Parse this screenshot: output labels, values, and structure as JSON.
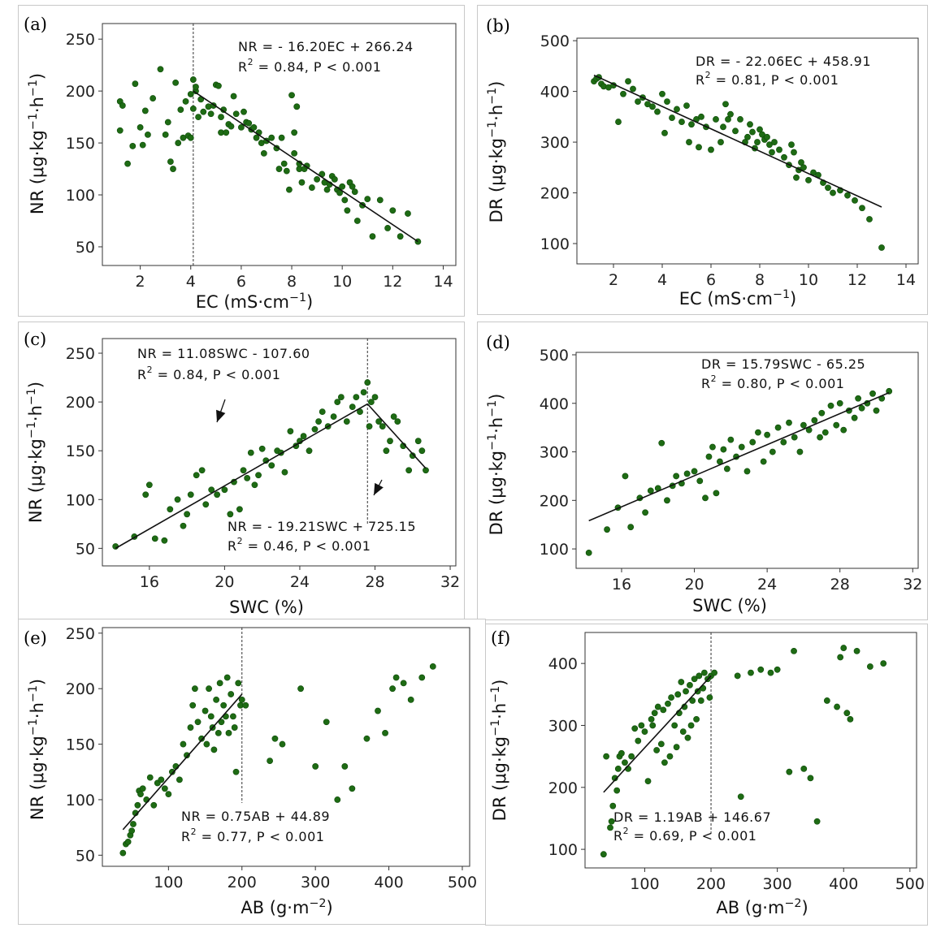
{
  "chart_data": [
    {
      "id": "a",
      "type": "scatter",
      "panel_label": "(a)",
      "xlabel": "EC (mS·cm",
      "xlabel_sup": "−1",
      "xlabel_end": ")",
      "ylabel": "NR (μg·kg",
      "ylabel_sup1": "−1",
      "ylabel_mid": "·h",
      "ylabel_sup2": "−1",
      "ylabel_end": ")",
      "xlim": [
        0.5,
        14.5
      ],
      "ylim": [
        32,
        265
      ],
      "xticks": [
        2,
        4,
        6,
        8,
        10,
        12,
        14
      ],
      "yticks": [
        50,
        100,
        150,
        200,
        250
      ],
      "equation": "NR = - 16.20EC + 266.24",
      "r2_label": "R",
      "r2_value": " = 0.84,   P < 0.001",
      "threshold_x": 4.1,
      "fit_lines": [
        {
          "x": [
            4.1,
            13.0
          ],
          "y": [
            200,
            55
          ]
        }
      ],
      "points": {
        "x": [
          1.2,
          1.3,
          1.2,
          1.5,
          1.7,
          1.8,
          2.0,
          2.1,
          2.2,
          2.3,
          2.5,
          2.8,
          3.0,
          3.1,
          3.2,
          3.3,
          3.4,
          3.5,
          3.6,
          3.7,
          3.8,
          3.9,
          4.0,
          4.0,
          4.1,
          4.1,
          4.2,
          4.2,
          4.3,
          4.4,
          4.5,
          4.7,
          4.8,
          4.9,
          5.0,
          5.1,
          5.2,
          5.2,
          5.3,
          5.4,
          5.5,
          5.6,
          5.7,
          5.8,
          6.0,
          6.1,
          6.2,
          6.3,
          6.4,
          6.5,
          6.6,
          6.7,
          6.8,
          6.9,
          7.0,
          7.2,
          7.4,
          7.5,
          7.6,
          7.7,
          7.8,
          7.9,
          8.0,
          8.1,
          8.1,
          8.2,
          8.3,
          8.3,
          8.4,
          8.5,
          8.6,
          8.8,
          9.0,
          9.2,
          9.3,
          9.4,
          9.5,
          9.6,
          9.7,
          9.8,
          9.9,
          10.0,
          10.1,
          10.2,
          10.3,
          10.4,
          10.5,
          10.6,
          10.8,
          11.0,
          11.2,
          11.5,
          11.8,
          12.0,
          12.3,
          12.6,
          13.0
        ],
        "y": [
          190,
          186,
          162,
          130,
          147,
          207,
          165,
          148,
          181,
          158,
          193,
          221,
          158,
          170,
          132,
          125,
          208,
          150,
          182,
          155,
          190,
          157,
          197,
          155,
          183,
          211,
          200,
          204,
          175,
          192,
          180,
          185,
          178,
          186,
          206,
          205,
          160,
          175,
          182,
          160,
          168,
          166,
          195,
          178,
          165,
          180,
          170,
          169,
          163,
          165,
          155,
          160,
          150,
          140,
          152,
          155,
          145,
          125,
          155,
          130,
          123,
          105,
          196,
          140,
          160,
          185,
          125,
          130,
          112,
          125,
          128,
          107,
          115,
          120,
          112,
          105,
          110,
          118,
          115,
          105,
          102,
          108,
          95,
          85,
          112,
          108,
          103,
          75,
          90,
          96,
          60,
          95,
          68,
          85,
          60,
          82,
          55
        ]
      }
    },
    {
      "id": "b",
      "type": "scatter",
      "panel_label": "(b)",
      "xlabel": "EC (mS·cm",
      "xlabel_sup": "−1",
      "xlabel_end": ")",
      "ylabel": "DR (μg·kg",
      "ylabel_sup1": "−1",
      "ylabel_mid": "·h",
      "ylabel_sup2": "−1",
      "ylabel_end": ")",
      "xlim": [
        0.5,
        14.5
      ],
      "ylim": [
        60,
        505
      ],
      "xticks": [
        2,
        4,
        6,
        8,
        10,
        12,
        14
      ],
      "yticks": [
        100,
        200,
        300,
        400,
        500
      ],
      "equation": "DR = - 22.06EC + 458.91",
      "r2_label": "R",
      "r2_value": " = 0.81,   P < 0.001",
      "threshold_x": null,
      "fit_lines": [
        {
          "x": [
            1.2,
            13.0
          ],
          "y": [
            432,
            172
          ]
        }
      ],
      "points": {
        "x": [
          1.2,
          1.3,
          1.4,
          1.5,
          1.6,
          1.8,
          2.0,
          2.2,
          2.4,
          2.6,
          2.8,
          3.0,
          3.2,
          3.4,
          3.6,
          3.8,
          4.0,
          4.1,
          4.2,
          4.4,
          4.6,
          4.8,
          5.0,
          5.1,
          5.2,
          5.4,
          5.5,
          5.6,
          5.8,
          6.0,
          6.2,
          6.4,
          6.5,
          6.6,
          6.7,
          6.8,
          7.0,
          7.2,
          7.4,
          7.5,
          7.6,
          7.7,
          7.8,
          7.9,
          8.0,
          8.1,
          8.2,
          8.3,
          8.4,
          8.5,
          8.6,
          8.8,
          9.0,
          9.2,
          9.3,
          9.4,
          9.5,
          9.6,
          9.7,
          9.8,
          10.0,
          10.2,
          10.4,
          10.6,
          10.8,
          11.0,
          11.3,
          11.6,
          11.9,
          12.2,
          12.5,
          13.0
        ],
        "y": [
          420,
          425,
          428,
          415,
          410,
          408,
          412,
          340,
          395,
          420,
          405,
          380,
          388,
          375,
          370,
          360,
          395,
          318,
          380,
          348,
          365,
          340,
          372,
          300,
          335,
          345,
          290,
          350,
          330,
          285,
          345,
          300,
          330,
          375,
          345,
          355,
          322,
          345,
          300,
          310,
          335,
          320,
          288,
          300,
          325,
          315,
          305,
          310,
          295,
          280,
          300,
          285,
          270,
          255,
          295,
          280,
          230,
          245,
          260,
          250,
          225,
          240,
          235,
          220,
          210,
          200,
          205,
          195,
          185,
          170,
          148,
          92
        ]
      }
    },
    {
      "id": "c",
      "type": "scatter",
      "panel_label": "(c)",
      "xlabel": "SWC (%)",
      "xlabel_sup": "",
      "xlabel_end": "",
      "ylabel": "NR (μg·kg",
      "ylabel_sup1": "−1",
      "ylabel_mid": "·h",
      "ylabel_sup2": "−1",
      "ylabel_end": ")",
      "xlim": [
        13.5,
        32.3
      ],
      "ylim": [
        32,
        265
      ],
      "xticks": [
        16,
        20,
        24,
        28,
        32
      ],
      "yticks": [
        50,
        100,
        150,
        200,
        250
      ],
      "equations": [
        {
          "text": "NR = 11.08SWC - 107.60",
          "r2_label": "R",
          "r2_value": " = 0.84,   P < 0.001"
        },
        {
          "text": "NR = - 19.21SWC + 725.15",
          "r2_label": "R",
          "r2_value": " = 0.46,   P < 0.001"
        }
      ],
      "threshold_x": 27.6,
      "fit_lines": [
        {
          "x": [
            14.2,
            27.6
          ],
          "y": [
            50,
            198
          ]
        },
        {
          "x": [
            27.6,
            30.7
          ],
          "y": [
            198,
            132
          ]
        }
      ],
      "points": {
        "x": [
          14.2,
          15.2,
          15.8,
          16.0,
          16.3,
          16.8,
          17.1,
          17.5,
          17.8,
          18.0,
          18.2,
          18.5,
          18.8,
          19.0,
          19.3,
          19.6,
          20.0,
          20.3,
          20.5,
          20.8,
          21.0,
          21.2,
          21.4,
          21.6,
          21.8,
          22.0,
          22.2,
          22.5,
          22.8,
          23.0,
          23.2,
          23.5,
          23.8,
          24.0,
          24.2,
          24.5,
          24.8,
          25.0,
          25.2,
          25.5,
          25.8,
          26.0,
          26.2,
          26.5,
          26.8,
          27.0,
          27.2,
          27.4,
          27.6,
          27.7,
          27.8,
          28.0,
          28.2,
          28.4,
          28.6,
          28.8,
          29.0,
          29.2,
          29.5,
          29.8,
          30.0,
          30.3,
          30.5,
          30.7
        ],
        "y": [
          52,
          62,
          105,
          115,
          60,
          58,
          90,
          100,
          73,
          85,
          105,
          125,
          130,
          95,
          110,
          105,
          110,
          85,
          118,
          90,
          130,
          122,
          148,
          115,
          125,
          152,
          140,
          135,
          150,
          148,
          128,
          170,
          155,
          160,
          165,
          150,
          172,
          180,
          190,
          175,
          185,
          200,
          205,
          180,
          195,
          205,
          190,
          210,
          220,
          175,
          200,
          205,
          180,
          175,
          150,
          160,
          185,
          180,
          155,
          130,
          145,
          160,
          150,
          130
        ]
      }
    },
    {
      "id": "d",
      "type": "scatter",
      "panel_label": "(d)",
      "xlabel": "SWC (%)",
      "xlabel_sup": "",
      "xlabel_end": "",
      "ylabel": "DR (μg·kg",
      "ylabel_sup1": "−1",
      "ylabel_mid": "·h",
      "ylabel_sup2": "−1",
      "ylabel_end": ")",
      "xlim": [
        13.5,
        32.3
      ],
      "ylim": [
        60,
        505
      ],
      "xticks": [
        16,
        20,
        24,
        28,
        32
      ],
      "yticks": [
        100,
        200,
        300,
        400,
        500
      ],
      "equation": "DR = 15.79SWC - 65.25",
      "r2_label": "R",
      "r2_value": " = 0.80,   P < 0.001",
      "threshold_x": null,
      "fit_lines": [
        {
          "x": [
            14.2,
            30.7
          ],
          "y": [
            158,
            422
          ]
        }
      ],
      "points": {
        "x": [
          14.2,
          15.2,
          15.8,
          16.2,
          16.5,
          17.0,
          17.3,
          17.6,
          18.0,
          18.2,
          18.5,
          18.8,
          19.0,
          19.3,
          19.6,
          20.0,
          20.3,
          20.6,
          20.8,
          21.0,
          21.2,
          21.4,
          21.6,
          21.8,
          22.0,
          22.3,
          22.6,
          22.9,
          23.2,
          23.5,
          23.8,
          24.0,
          24.3,
          24.6,
          24.9,
          25.2,
          25.5,
          25.8,
          26.0,
          26.3,
          26.6,
          26.9,
          27.0,
          27.2,
          27.5,
          27.8,
          28.0,
          28.2,
          28.5,
          28.8,
          29.0,
          29.2,
          29.5,
          29.8,
          30.0,
          30.3,
          30.7
        ],
        "y": [
          92,
          140,
          185,
          250,
          145,
          205,
          175,
          220,
          225,
          318,
          200,
          230,
          250,
          235,
          255,
          260,
          240,
          205,
          290,
          310,
          215,
          280,
          305,
          265,
          325,
          290,
          310,
          260,
          320,
          340,
          280,
          335,
          300,
          350,
          320,
          360,
          330,
          300,
          355,
          345,
          365,
          330,
          380,
          340,
          395,
          355,
          400,
          345,
          385,
          370,
          410,
          390,
          400,
          420,
          385,
          410,
          425
        ]
      }
    },
    {
      "id": "e",
      "type": "scatter",
      "panel_label": "(e)",
      "xlabel": "AB (g·m",
      "xlabel_sup": "−2",
      "xlabel_end": ")",
      "ylabel": "NR (μg·kg",
      "ylabel_sup1": "−1",
      "ylabel_mid": "·h",
      "ylabel_sup2": "−1",
      "ylabel_end": ")",
      "xlim": [
        10,
        510
      ],
      "ylim": [
        40,
        255
      ],
      "xticks": [
        100,
        200,
        300,
        400,
        500
      ],
      "yticks": [
        50,
        100,
        150,
        200,
        250
      ],
      "equation": "NR = 0.75AB + 44.89",
      "r2_label": "R",
      "r2_value": " = 0.77,   P < 0.001",
      "threshold_x": 200,
      "fit_lines": [
        {
          "x": [
            38,
            200
          ],
          "y": [
            73,
            195
          ]
        }
      ],
      "points": {
        "x": [
          38,
          42,
          45,
          48,
          50,
          52,
          55,
          58,
          60,
          62,
          65,
          70,
          75,
          80,
          85,
          90,
          95,
          100,
          105,
          110,
          115,
          120,
          125,
          130,
          133,
          136,
          140,
          145,
          150,
          152,
          155,
          158,
          160,
          162,
          165,
          168,
          170,
          172,
          175,
          178,
          180,
          182,
          185,
          188,
          190,
          192,
          195,
          198,
          200,
          205,
          238,
          245,
          255,
          280,
          300,
          315,
          330,
          340,
          350,
          370,
          385,
          395,
          405,
          410,
          420,
          430,
          445,
          460
        ],
        "y": [
          52,
          60,
          62,
          68,
          72,
          78,
          88,
          95,
          108,
          105,
          110,
          100,
          120,
          95,
          115,
          118,
          110,
          105,
          125,
          130,
          118,
          150,
          140,
          165,
          185,
          200,
          170,
          155,
          180,
          150,
          200,
          175,
          165,
          145,
          190,
          160,
          205,
          170,
          185,
          175,
          210,
          160,
          195,
          175,
          165,
          125,
          205,
          185,
          190,
          185,
          135,
          155,
          150,
          200,
          130,
          170,
          100,
          130,
          110,
          155,
          180,
          160,
          200,
          210,
          205,
          190,
          210,
          220
        ]
      }
    },
    {
      "id": "f",
      "type": "scatter",
      "panel_label": "(f)",
      "xlabel": "AB (g·m",
      "xlabel_sup": "−2",
      "xlabel_end": ")",
      "ylabel": "DR (μg·kg",
      "ylabel_sup1": "−1",
      "ylabel_mid": "·h",
      "ylabel_sup2": "−1",
      "ylabel_end": ")",
      "xlim": [
        10,
        510
      ],
      "ylim": [
        70,
        450
      ],
      "xticks": [
        100,
        200,
        300,
        400,
        500
      ],
      "yticks": [
        100,
        200,
        300,
        400
      ],
      "equation": "DR = 1.19AB + 146.67",
      "r2_label": "R",
      "r2_value": " = 0.69,   P < 0.001",
      "threshold_x": 200,
      "fit_lines": [
        {
          "x": [
            38,
            200
          ],
          "y": [
            192,
            380
          ]
        }
      ],
      "points": {
        "x": [
          38,
          42,
          48,
          50,
          52,
          55,
          58,
          60,
          62,
          65,
          70,
          75,
          80,
          85,
          90,
          95,
          100,
          105,
          110,
          112,
          115,
          118,
          120,
          125,
          128,
          130,
          135,
          138,
          140,
          145,
          148,
          150,
          152,
          155,
          158,
          160,
          162,
          165,
          168,
          170,
          172,
          175,
          178,
          180,
          182,
          185,
          188,
          190,
          195,
          198,
          200,
          205,
          240,
          245,
          260,
          275,
          290,
          300,
          318,
          325,
          340,
          350,
          360,
          375,
          390,
          395,
          400,
          405,
          410,
          420,
          440,
          460
        ],
        "y": [
          92,
          250,
          135,
          145,
          170,
          215,
          195,
          230,
          250,
          255,
          240,
          230,
          250,
          295,
          275,
          300,
          290,
          210,
          310,
          300,
          320,
          260,
          330,
          270,
          325,
          240,
          335,
          250,
          345,
          300,
          265,
          350,
          320,
          370,
          290,
          330,
          355,
          280,
          365,
          300,
          340,
          375,
          310,
          355,
          380,
          340,
          360,
          385,
          375,
          345,
          380,
          385,
          380,
          185,
          385,
          390,
          385,
          390,
          225,
          420,
          230,
          215,
          145,
          340,
          330,
          410,
          425,
          320,
          310,
          420,
          395,
          400
        ]
      }
    }
  ]
}
